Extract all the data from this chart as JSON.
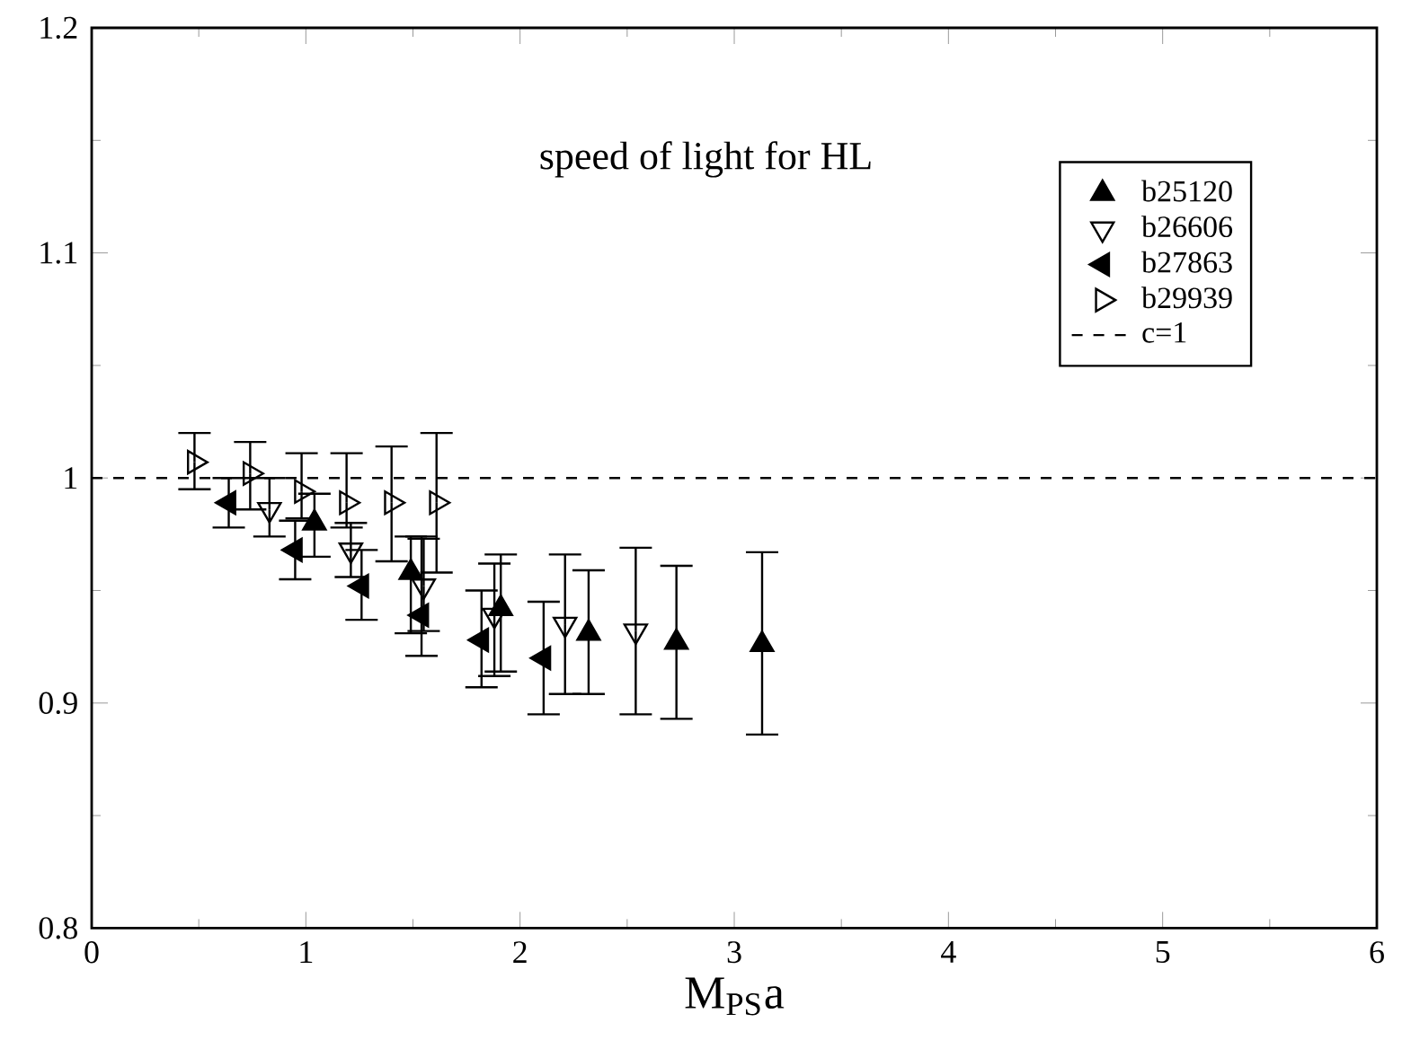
{
  "chart_data": {
    "type": "scatter",
    "title": "speed of light for HL",
    "xlabel": "M$_{PS}$a",
    "xlim": [
      0,
      6
    ],
    "xticks": [
      0,
      1,
      2,
      3,
      4,
      5,
      6
    ],
    "ylim": [
      0.8,
      1.2
    ],
    "yticks": [
      0.8,
      0.9,
      {
        "value": 1,
        "label": "1"
      },
      1.1,
      1.2
    ],
    "legend": "top right",
    "grid": false,
    "series": [
      {
        "name": "b25120",
        "color": "#000000",
        "marker": "triangle",
        "x": [
          1.04,
          1.49,
          1.91,
          2.32,
          2.73,
          3.13
        ],
        "values": [
          0.98,
          0.958,
          0.942,
          0.931,
          0.927,
          0.926
        ],
        "errors": [
          [
            0.965,
            0.993
          ],
          [
            0.931,
            0.974
          ],
          [
            0.914,
            0.966
          ],
          [
            0.904,
            0.959
          ],
          [
            0.893,
            0.961
          ],
          [
            0.886,
            0.967
          ]
        ]
      },
      {
        "name": "b26606",
        "color": "#000000",
        "marker": "triangle-down-open",
        "x": [
          0.83,
          1.21,
          1.55,
          1.88,
          2.21,
          2.54
        ],
        "values": [
          0.986,
          0.968,
          0.952,
          0.939,
          0.935,
          0.932
        ],
        "errors": [
          [
            0.974,
            1.0
          ],
          [
            0.956,
            0.98
          ],
          [
            0.932,
            0.973
          ],
          [
            0.912,
            0.962
          ],
          [
            0.904,
            0.966
          ],
          [
            0.895,
            0.969
          ]
        ]
      },
      {
        "name": "b27863",
        "color": "#000000",
        "marker": "triangle-left",
        "x": [
          0.64,
          0.95,
          1.26,
          1.54,
          1.82,
          2.11
        ],
        "values": [
          0.989,
          0.968,
          0.952,
          0.939,
          0.928,
          0.92
        ],
        "errors": [
          [
            0.978,
            1.0
          ],
          [
            0.955,
            0.981
          ],
          [
            0.937,
            0.968
          ],
          [
            0.921,
            0.974
          ],
          [
            0.907,
            0.95
          ],
          [
            0.895,
            0.945
          ]
        ]
      },
      {
        "name": "b29939",
        "color": "#000000",
        "marker": "triangle-right-open",
        "x": [
          0.48,
          0.74,
          0.98,
          1.19,
          1.4,
          1.61
        ],
        "values": [
          1.007,
          1.002,
          0.994,
          0.989,
          0.989,
          0.989
        ],
        "errors": [
          [
            0.995,
            1.02
          ],
          [
            0.986,
            1.016
          ],
          [
            0.982,
            1.011
          ],
          [
            0.978,
            1.011
          ],
          [
            0.963,
            1.014
          ],
          [
            0.958,
            1.02
          ]
        ]
      }
    ],
    "ref_lines": [
      {
        "axis": "y",
        "value": 1,
        "label": "c=1",
        "color": "#000000",
        "line_style": "dashed"
      }
    ]
  }
}
